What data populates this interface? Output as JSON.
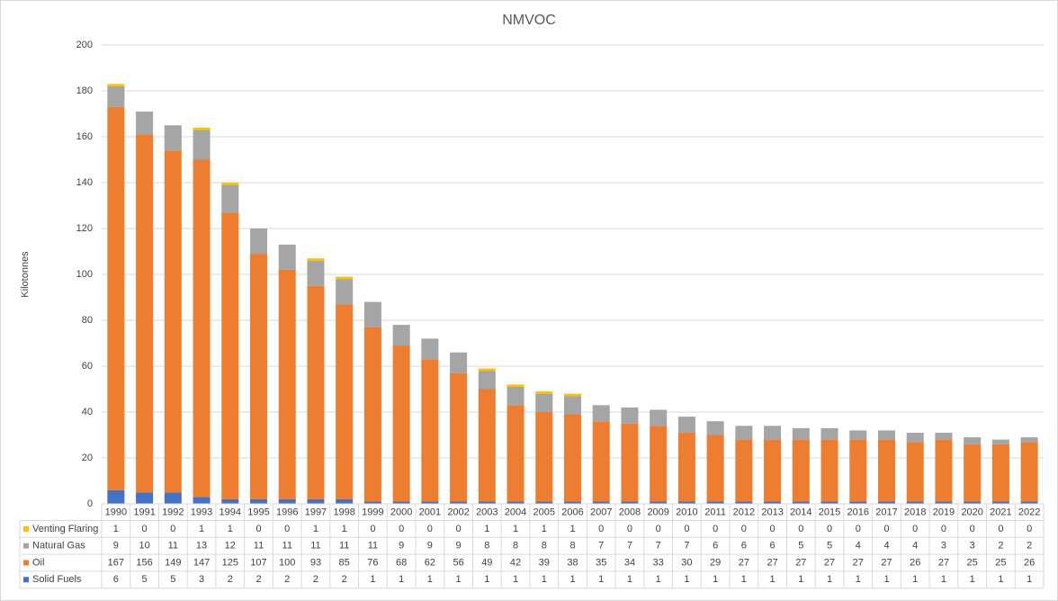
{
  "chart_data": {
    "type": "stacked_bar",
    "title": "NMVOC",
    "y_label": "Kilotonnes",
    "categories": [
      "1990",
      "1991",
      "1992",
      "1993",
      "1994",
      "1995",
      "1996",
      "1997",
      "1998",
      "1999",
      "2000",
      "2001",
      "2002",
      "2003",
      "2004",
      "2005",
      "2006",
      "2007",
      "2008",
      "2009",
      "2010",
      "2011",
      "2012",
      "2013",
      "2014",
      "2015",
      "2016",
      "2017",
      "2018",
      "2019",
      "2020",
      "2021",
      "2022"
    ],
    "series": [
      {
        "name": "Venting Flaring",
        "color": "#ffc000",
        "values": [
          1,
          0,
          0,
          1,
          1,
          0,
          0,
          1,
          1,
          0,
          0,
          0,
          0,
          1,
          1,
          1,
          1,
          0,
          0,
          0,
          0,
          0,
          0,
          0,
          0,
          0,
          0,
          0,
          0,
          0,
          0,
          0,
          0
        ]
      },
      {
        "name": "Natural Gas",
        "color": "#a5a5a5",
        "values": [
          9,
          10,
          11,
          13,
          12,
          11,
          11,
          11,
          11,
          11,
          9,
          9,
          9,
          8,
          8,
          8,
          8,
          7,
          7,
          7,
          7,
          6,
          6,
          6,
          5,
          5,
          4,
          4,
          4,
          3,
          3,
          2,
          2
        ]
      },
      {
        "name": "Oil",
        "color": "#ed7d31",
        "values": [
          167,
          156,
          149,
          147,
          125,
          107,
          100,
          93,
          85,
          76,
          68,
          62,
          56,
          49,
          42,
          39,
          38,
          35,
          34,
          33,
          30,
          29,
          27,
          27,
          27,
          27,
          27,
          27,
          26,
          27,
          25,
          25,
          26
        ]
      },
      {
        "name": "Solid Fuels",
        "color": "#4472c4",
        "values": [
          6,
          5,
          5,
          3,
          2,
          2,
          2,
          2,
          2,
          1,
          1,
          1,
          1,
          1,
          1,
          1,
          1,
          1,
          1,
          1,
          1,
          1,
          1,
          1,
          1,
          1,
          1,
          1,
          1,
          1,
          1,
          1,
          1
        ]
      }
    ],
    "ylim": [
      0,
      200
    ],
    "yticks": [
      0,
      20,
      40,
      60,
      80,
      100,
      120,
      140,
      160,
      180,
      200
    ],
    "grid": true,
    "legend": "data-table"
  }
}
